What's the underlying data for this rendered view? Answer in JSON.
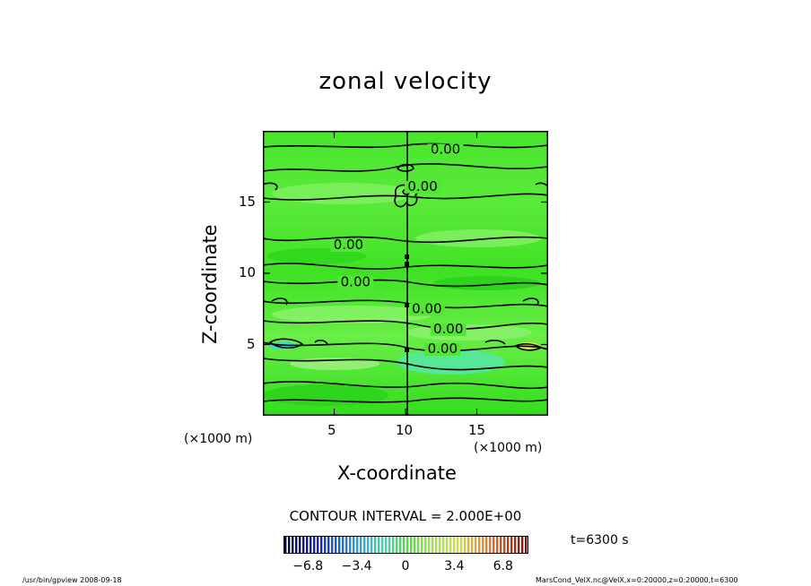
{
  "chart_data": {
    "type": "heatmap",
    "title": "zonal velocity",
    "xlabel": "X-coordinate",
    "ylabel": "Z-coordinate",
    "x_unit": "(×1000 m)",
    "y_unit": "(×1000 m)",
    "xlim": [
      0,
      20
    ],
    "ylim": [
      0,
      20
    ],
    "x_ticks": [
      5,
      10,
      15
    ],
    "y_ticks": [
      5,
      10,
      15
    ],
    "contour_labels": [
      {
        "text": "0.00",
        "x": 12.8,
        "y": 18.4
      },
      {
        "text": "0.00",
        "x": 11.2,
        "y": 15.8
      },
      {
        "text": "0.00",
        "x": 6.0,
        "y": 11.7
      },
      {
        "text": "0.00",
        "x": 6.5,
        "y": 9.1
      },
      {
        "text": "0.00",
        "x": 11.5,
        "y": 7.2
      },
      {
        "text": "0.00",
        "x": 13.0,
        "y": 5.8
      },
      {
        "text": "0.00",
        "x": 12.6,
        "y": 4.4
      }
    ],
    "contour_interval_text": "CONTOUR INTERVAL = 2.000E+00",
    "colorbar": {
      "min": -8.5,
      "max": 8.5,
      "ticks": [
        "−6.8",
        "−3.4",
        "0",
        "3.4",
        "6.8"
      ],
      "tick_values": [
        -6.8,
        -3.4,
        0,
        3.4,
        6.8
      ]
    },
    "time_label": "t=6300 s"
  },
  "footer": {
    "left": "/usr/bin/gpview   2008-09-18",
    "right": "MarsCond_VelX.nc@VelX,x=0:20000,z=0:20000,t=6300"
  },
  "colors": {
    "field_green": "#36e21f",
    "field_light": "#7ef05a",
    "cyan": "#3fe6c8",
    "yellow": "#e9ee3a"
  }
}
